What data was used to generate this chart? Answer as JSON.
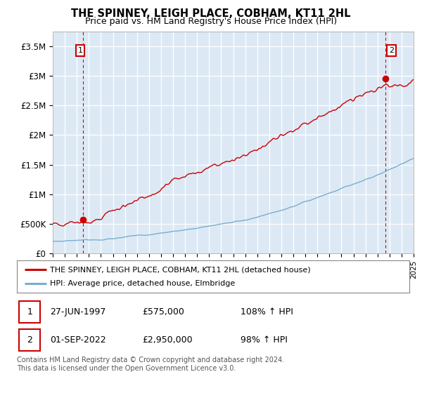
{
  "title": "THE SPINNEY, LEIGH PLACE, COBHAM, KT11 2HL",
  "subtitle": "Price paid vs. HM Land Registry's House Price Index (HPI)",
  "legend_line1": "THE SPINNEY, LEIGH PLACE, COBHAM, KT11 2HL (detached house)",
  "legend_line2": "HPI: Average price, detached house, Elmbridge",
  "annotation1_date": "27-JUN-1997",
  "annotation1_price": "£575,000",
  "annotation1_hpi": "108% ↑ HPI",
  "annotation2_date": "01-SEP-2022",
  "annotation2_price": "£2,950,000",
  "annotation2_hpi": "98% ↑ HPI",
  "footer": "Contains HM Land Registry data © Crown copyright and database right 2024.\nThis data is licensed under the Open Government Licence v3.0.",
  "red_color": "#cc0000",
  "blue_color": "#7aadcf",
  "background_color": "#dce9f5",
  "ylim": [
    0,
    3750000
  ],
  "yticks": [
    0,
    500000,
    1000000,
    1500000,
    2000000,
    2500000,
    3000000,
    3500000
  ],
  "ytick_labels": [
    "£0",
    "£500K",
    "£1M",
    "£1.5M",
    "£2M",
    "£2.5M",
    "£3M",
    "£3.5M"
  ],
  "x_start_year": 1995,
  "x_end_year": 2025,
  "sale1_year": 1997.49,
  "sale1_price": 575000,
  "sale2_year": 2022.67,
  "sale2_price": 2950000
}
